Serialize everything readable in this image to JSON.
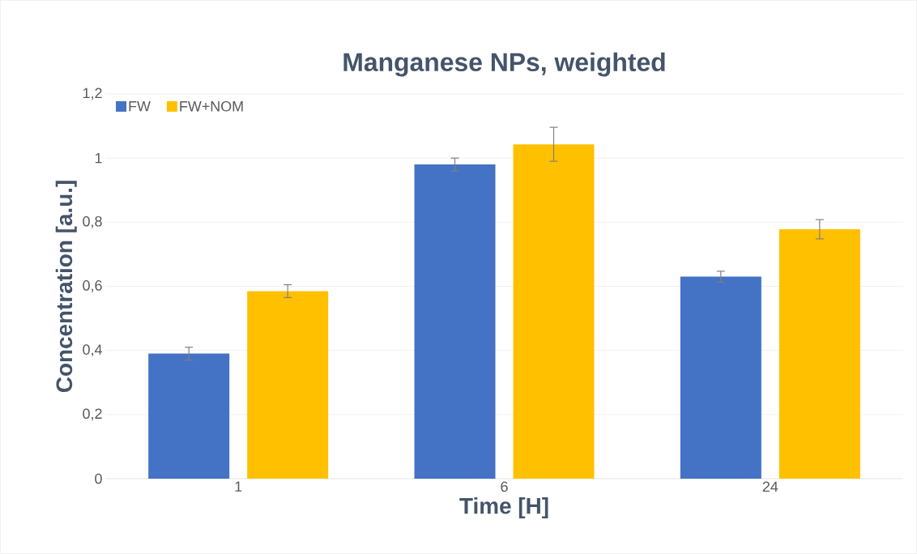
{
  "chart_data": {
    "type": "bar",
    "title": "Manganese NPs, weighted",
    "xlabel": "Time [H]",
    "ylabel": "Concentration [a.u.]",
    "categories": [
      "1",
      "6",
      "24"
    ],
    "series": [
      {
        "name": "FW",
        "color": "#4472c4",
        "values": [
          0.39,
          0.98,
          0.63
        ],
        "errors": [
          0.02,
          0.02,
          0.017
        ]
      },
      {
        "name": "FW+NOM",
        "color": "#ffc000",
        "values": [
          0.585,
          1.043,
          0.778
        ],
        "errors": [
          0.02,
          0.053,
          0.03
        ]
      }
    ],
    "ylim": [
      0,
      1.2
    ],
    "yticks": [
      0,
      {
        "value": 0.2,
        "label": "0,2"
      },
      {
        "value": 0.4,
        "label": "0,4"
      },
      {
        "value": 0.6,
        "label": "0,6"
      },
      {
        "value": 0.8,
        "label": "0,8"
      },
      1,
      {
        "value": 1.2,
        "label": "1,2"
      }
    ],
    "grid": "y",
    "legend": "top left"
  }
}
